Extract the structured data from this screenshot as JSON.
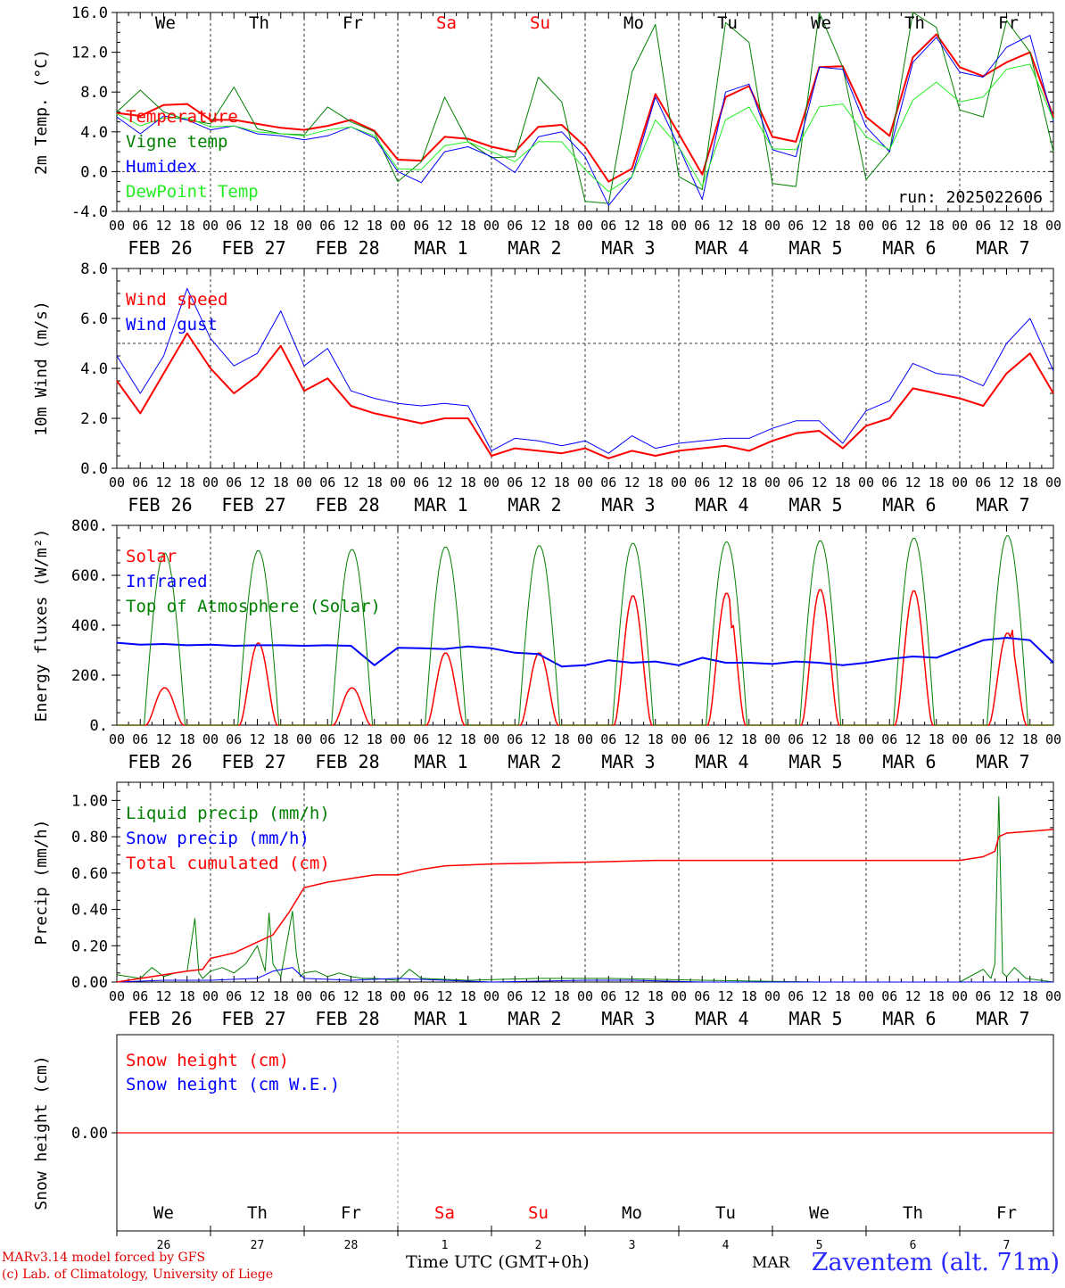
{
  "run_label": "run: 2025022606",
  "colors": {
    "red": "#ff0000",
    "green": "#008000",
    "blue": "#0000ff",
    "lime": "#22ee22",
    "weekend": "#ff0000"
  },
  "weekday_labels": [
    "We",
    "Th",
    "Fr",
    "Sa",
    "Su",
    "Mo",
    "Tu",
    "We",
    "Th",
    "Fr"
  ],
  "weekend_flags": [
    false,
    false,
    false,
    true,
    true,
    false,
    false,
    false,
    false,
    false
  ],
  "hour_ticks": [
    "00",
    "06",
    "12",
    "18"
  ],
  "date_labels": [
    "FEB 26",
    "FEB 27",
    "FEB 28",
    "MAR  1",
    "MAR  2",
    "MAR  3",
    "MAR  4",
    "MAR  5",
    "MAR  6",
    "MAR  7"
  ],
  "bottom_day_numbers": [
    "26",
    "27",
    "28",
    "1",
    "2",
    "3",
    "4",
    "5",
    "6",
    "7"
  ],
  "footer": {
    "model": "MARv3.14 model forced by GFS",
    "credit": "(c) Lab. of Climatology, University of Liege",
    "time_axis": "Time UTC (GMT+0h)",
    "month": "MAR",
    "station": "Zaventem (alt. 71m)"
  },
  "chart_data": [
    {
      "type": "line",
      "ylabel": "2m Temp. (°C)",
      "ylim": [
        -4,
        16
      ],
      "yticks": [
        "-4.0",
        "0.0",
        "4.0",
        "8.0",
        "12.0",
        "16.0"
      ],
      "ytick_values": [
        -4,
        0,
        4,
        8,
        12,
        16
      ],
      "x_unit": "hours since FEB 26 00 UTC",
      "x_range": [
        0,
        240
      ],
      "reference_line": 0,
      "series": [
        {
          "name": "Temperature",
          "color": "red",
          "width": 2,
          "x": [
            0,
            6,
            12,
            18,
            24,
            30,
            36,
            42,
            48,
            54,
            60,
            66,
            72,
            78,
            84,
            90,
            96,
            102,
            108,
            114,
            120,
            126,
            132,
            138,
            144,
            150,
            156,
            162,
            168,
            174,
            180,
            186,
            192,
            198,
            204,
            210,
            216,
            222,
            228,
            234,
            240
          ],
          "y": [
            5.9,
            5.6,
            6.7,
            6.8,
            5.2,
            5.2,
            4.8,
            4.4,
            4.2,
            4.6,
            5.2,
            4.1,
            1.2,
            1.1,
            3.5,
            3.3,
            2.5,
            2.0,
            4.5,
            4.7,
            2.5,
            -1.0,
            0.3,
            7.8,
            3.8,
            -0.3,
            7.5,
            8.6,
            3.5,
            3.0,
            10.5,
            10.6,
            5.5,
            3.6,
            11.5,
            13.8,
            10.5,
            9.6,
            11.0,
            12.0,
            5.5
          ]
        },
        {
          "name": "Vigne temp",
          "color": "green",
          "width": 1,
          "x": [
            0,
            6,
            12,
            18,
            24,
            30,
            36,
            42,
            48,
            54,
            60,
            66,
            72,
            78,
            84,
            90,
            96,
            102,
            108,
            114,
            120,
            126,
            132,
            138,
            144,
            150,
            156,
            162,
            168,
            174,
            180,
            186,
            192,
            198,
            204,
            210,
            216,
            222,
            228,
            234,
            240
          ],
          "y": [
            6.0,
            8.2,
            6.0,
            5.2,
            4.8,
            8.5,
            4.3,
            3.8,
            3.7,
            6.5,
            5.0,
            4.0,
            -1.0,
            1.0,
            7.5,
            3.0,
            1.4,
            1.5,
            9.5,
            7.0,
            -3.0,
            -3.2,
            10.0,
            14.8,
            -0.5,
            -1.8,
            15.0,
            13.0,
            -1.2,
            -1.5,
            16.8,
            10.5,
            -0.8,
            2.0,
            16.0,
            14.5,
            6.2,
            5.5,
            15.2,
            12.0,
            2.0
          ]
        },
        {
          "name": "Humidex",
          "color": "blue",
          "width": 1,
          "x": [
            0,
            6,
            12,
            18,
            24,
            30,
            36,
            42,
            48,
            54,
            60,
            66,
            72,
            78,
            84,
            90,
            96,
            102,
            108,
            114,
            120,
            126,
            132,
            138,
            144,
            150,
            156,
            162,
            168,
            174,
            180,
            186,
            192,
            198,
            204,
            210,
            216,
            222,
            228,
            234,
            240
          ],
          "y": [
            5.5,
            3.8,
            5.6,
            5.2,
            4.2,
            4.6,
            3.8,
            3.6,
            3.2,
            3.6,
            4.5,
            3.4,
            0.0,
            -1.1,
            2.0,
            2.5,
            1.5,
            -0.1,
            3.5,
            4.0,
            1.5,
            -3.4,
            -0.5,
            7.5,
            2.5,
            -2.8,
            8.0,
            8.8,
            2.2,
            1.5,
            10.5,
            10.3,
            4.5,
            2.0,
            11.0,
            13.5,
            10.0,
            9.5,
            12.5,
            13.7,
            5.0
          ]
        },
        {
          "name": "DewPoint Temp",
          "color": "lime",
          "width": 1,
          "x": [
            0,
            6,
            12,
            18,
            24,
            30,
            36,
            42,
            48,
            54,
            60,
            66,
            72,
            78,
            84,
            90,
            96,
            102,
            108,
            114,
            120,
            126,
            132,
            138,
            144,
            150,
            156,
            162,
            168,
            174,
            180,
            186,
            192,
            198,
            204,
            210,
            216,
            222,
            228,
            234,
            240
          ],
          "y": [
            5.8,
            4.6,
            5.4,
            5.4,
            4.5,
            4.6,
            4.0,
            3.8,
            3.6,
            4.2,
            4.5,
            3.6,
            0.3,
            0.2,
            2.6,
            3.0,
            2.0,
            1.0,
            3.0,
            3.0,
            0.2,
            -2.0,
            -0.5,
            5.2,
            2.5,
            -1.5,
            5.2,
            6.5,
            2.3,
            2.2,
            6.5,
            6.8,
            3.5,
            2.2,
            7.2,
            9.0,
            7.0,
            7.5,
            10.3,
            10.8,
            5.2
          ]
        }
      ]
    },
    {
      "type": "line",
      "ylabel": "10m Wind (m/s)",
      "ylim": [
        0,
        8
      ],
      "yticks": [
        "0.0",
        "2.0",
        "4.0",
        "6.0",
        "8.0"
      ],
      "ytick_values": [
        0,
        2,
        4,
        6,
        8
      ],
      "x_unit": "hours since FEB 26 00 UTC",
      "x_range": [
        0,
        240
      ],
      "reference_line": 5,
      "series": [
        {
          "name": "Wind speed",
          "color": "red",
          "width": 2,
          "x": [
            0,
            6,
            12,
            18,
            24,
            30,
            36,
            42,
            48,
            54,
            60,
            66,
            72,
            78,
            84,
            90,
            96,
            102,
            108,
            114,
            120,
            126,
            132,
            138,
            144,
            150,
            156,
            162,
            168,
            174,
            180,
            186,
            192,
            198,
            204,
            210,
            216,
            222,
            228,
            234,
            240
          ],
          "y": [
            3.5,
            2.2,
            3.8,
            5.4,
            4.0,
            3.0,
            3.7,
            4.9,
            3.1,
            3.6,
            2.5,
            2.2,
            2.0,
            1.8,
            2.0,
            2.0,
            0.5,
            0.8,
            0.7,
            0.6,
            0.8,
            0.4,
            0.7,
            0.5,
            0.7,
            0.8,
            0.9,
            0.7,
            1.1,
            1.4,
            1.5,
            0.8,
            1.7,
            2.0,
            3.2,
            3.0,
            2.8,
            2.5,
            3.8,
            4.6,
            3.0
          ]
        },
        {
          "name": "Wind gust",
          "color": "blue",
          "width": 1,
          "x": [
            0,
            6,
            12,
            18,
            24,
            30,
            36,
            42,
            48,
            54,
            60,
            66,
            72,
            78,
            84,
            90,
            96,
            102,
            108,
            114,
            120,
            126,
            132,
            138,
            144,
            150,
            156,
            162,
            168,
            174,
            180,
            186,
            192,
            198,
            204,
            210,
            216,
            222,
            228,
            234,
            240
          ],
          "y": [
            4.5,
            3.0,
            4.5,
            7.2,
            5.2,
            4.1,
            4.6,
            6.3,
            4.1,
            4.8,
            3.1,
            2.8,
            2.6,
            2.5,
            2.6,
            2.5,
            0.7,
            1.2,
            1.1,
            0.9,
            1.1,
            0.6,
            1.3,
            0.8,
            1.0,
            1.1,
            1.2,
            1.2,
            1.6,
            1.9,
            1.9,
            1.0,
            2.3,
            2.7,
            4.2,
            3.8,
            3.7,
            3.3,
            5.0,
            6.0,
            3.9
          ]
        }
      ]
    },
    {
      "type": "line",
      "ylabel": "Energy fluxes (W/m²)",
      "ylim": [
        0,
        800
      ],
      "yticks": [
        "0.",
        "200.",
        "400.",
        "600.",
        "800."
      ],
      "ytick_values": [
        0,
        200,
        400,
        600,
        800
      ],
      "x_unit": "hours since FEB 26 00 UTC",
      "x_range": [
        0,
        240
      ],
      "series": [
        {
          "name": "Solar",
          "color": "red",
          "width": 1.5,
          "daily_peaks": [
            150,
            330,
            150,
            290,
            290,
            520,
            530,
            545,
            540,
            370
          ],
          "note_secondary_spikes": {
            "day_index": [
              6,
              9
            ],
            "value": [
              390,
              380
            ]
          }
        },
        {
          "name": "Infrared",
          "color": "blue",
          "width": 2,
          "x": [
            0,
            6,
            12,
            18,
            24,
            30,
            36,
            42,
            48,
            54,
            60,
            66,
            72,
            78,
            84,
            90,
            96,
            102,
            108,
            114,
            120,
            126,
            132,
            138,
            144,
            150,
            156,
            162,
            168,
            174,
            180,
            186,
            192,
            198,
            204,
            210,
            216,
            222,
            228,
            234,
            240
          ],
          "y": [
            330,
            322,
            325,
            320,
            322,
            318,
            320,
            320,
            318,
            320,
            318,
            240,
            310,
            308,
            305,
            315,
            308,
            290,
            285,
            235,
            240,
            260,
            250,
            255,
            240,
            270,
            250,
            250,
            245,
            255,
            250,
            240,
            250,
            265,
            275,
            270,
            305,
            340,
            350,
            340,
            250
          ]
        },
        {
          "name": "Top of Atmosphere (Solar)",
          "color": "green",
          "width": 1,
          "daily_peaks": [
            690,
            700,
            705,
            715,
            720,
            730,
            735,
            740,
            750,
            760
          ]
        }
      ]
    },
    {
      "type": "line",
      "ylabel": "Precip (mm/h)",
      "ylim": [
        0,
        1.1
      ],
      "yticks": [
        "0.00",
        "0.20",
        "0.40",
        "0.60",
        "0.80",
        "1.00"
      ],
      "ytick_values": [
        0,
        0.2,
        0.4,
        0.6,
        0.8,
        1.0
      ],
      "x_unit": "hours since FEB 26 00 UTC",
      "x_range": [
        0,
        240
      ],
      "series": [
        {
          "name": "Liquid precip (mm/h)",
          "color": "green",
          "width": 1,
          "x": [
            0,
            6,
            9,
            12,
            15,
            18,
            20,
            21,
            22,
            24,
            27,
            30,
            33,
            36,
            38,
            39,
            40,
            42,
            45,
            46,
            47,
            48,
            51,
            54,
            57,
            60,
            63,
            66,
            72,
            75,
            78,
            90,
            108,
            126,
            150,
            180,
            210,
            216,
            222,
            224,
            225,
            226,
            227,
            228,
            230,
            233,
            240
          ],
          "y": [
            0.04,
            0.02,
            0.08,
            0.03,
            0.05,
            0.06,
            0.35,
            0.05,
            0.02,
            0.06,
            0.08,
            0.05,
            0.1,
            0.2,
            0.06,
            0.38,
            0.1,
            0.03,
            0.39,
            0.15,
            0.03,
            0.05,
            0.06,
            0.03,
            0.05,
            0.03,
            0.02,
            0.02,
            0.01,
            0.07,
            0.02,
            0.01,
            0.02,
            0.02,
            0.01,
            0.0,
            0.0,
            0.0,
            0.07,
            0.02,
            0.1,
            1.02,
            0.05,
            0.03,
            0.08,
            0.02,
            0.0
          ]
        },
        {
          "name": "Snow precip (mm/h)",
          "color": "blue",
          "width": 1,
          "x": [
            0,
            12,
            24,
            36,
            40,
            45,
            48,
            60,
            72,
            84,
            96,
            120,
            132,
            150,
            240
          ],
          "y": [
            0.0,
            0.01,
            0.01,
            0.02,
            0.06,
            0.08,
            0.02,
            0.01,
            0.02,
            0.01,
            0.0,
            0.01,
            0.01,
            0.0,
            0.0
          ]
        },
        {
          "name": "Total cumulated (cm)",
          "color": "red",
          "width": 1.5,
          "x": [
            0,
            12,
            18,
            22,
            24,
            30,
            36,
            40,
            44,
            48,
            54,
            60,
            66,
            72,
            78,
            84,
            96,
            120,
            138,
            168,
            192,
            216,
            222,
            225,
            226,
            228,
            234,
            240
          ],
          "y": [
            0.0,
            0.04,
            0.06,
            0.07,
            0.13,
            0.16,
            0.22,
            0.26,
            0.38,
            0.52,
            0.55,
            0.57,
            0.59,
            0.59,
            0.62,
            0.64,
            0.65,
            0.66,
            0.67,
            0.67,
            0.67,
            0.67,
            0.69,
            0.72,
            0.8,
            0.82,
            0.83,
            0.84
          ]
        }
      ]
    },
    {
      "type": "line",
      "ylabel": "Snow height (cm)",
      "ylim": [
        -1,
        1
      ],
      "yticks": [
        "0.00"
      ],
      "ytick_values": [
        0
      ],
      "x_unit": "hours since FEB 26 00 UTC",
      "x_range": [
        0,
        240
      ],
      "series": [
        {
          "name": "Snow height (cm)",
          "color": "red",
          "width": 1.2,
          "x": [
            0,
            240
          ],
          "y": [
            0,
            0
          ]
        },
        {
          "name": "Snow height (cm W.E.)",
          "color": "blue",
          "width": 1.2,
          "x": [],
          "y": []
        }
      ]
    }
  ]
}
